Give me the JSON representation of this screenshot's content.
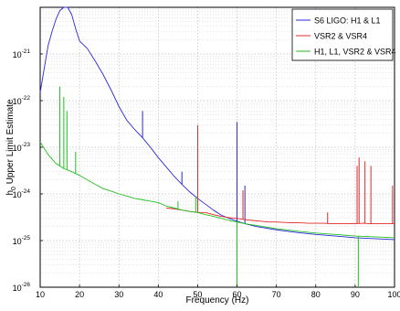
{
  "chart_data": {
    "type": "line",
    "xlabel": "Frequency (Hz)",
    "ylabel": "h_0 Upper Limit Estimate",
    "ylabel_main": "h",
    "ylabel_sub": "0",
    "ylabel_rest": " Upper Limit Estimate",
    "x_scale": "linear",
    "y_scale": "log",
    "xlim": [
      10,
      100
    ],
    "ylim": [
      1e-26,
      1e-20
    ],
    "x_ticks": [
      10,
      20,
      30,
      40,
      50,
      60,
      70,
      80,
      90,
      100
    ],
    "y_ticks": [
      {
        "value": 1e-21,
        "base": "10",
        "exp": "-21"
      },
      {
        "value": 1e-22,
        "base": "10",
        "exp": "-22"
      },
      {
        "value": 1e-23,
        "base": "10",
        "exp": "-23"
      },
      {
        "value": 1e-24,
        "base": "10",
        "exp": "-24"
      },
      {
        "value": 1e-25,
        "base": "10",
        "exp": "-25"
      },
      {
        "value": 1e-26,
        "base": "10",
        "exp": "-26"
      }
    ],
    "grid": true,
    "legend_position": "top-right",
    "series": [
      {
        "name": "S6 LIGO: H1 & L1",
        "color": "#2828d8",
        "x": [
          10,
          12,
          13,
          14,
          15,
          16,
          17,
          18,
          19,
          20,
          22,
          24,
          26,
          28,
          30,
          32,
          34,
          36,
          38,
          40,
          42,
          44,
          46,
          48,
          50,
          52,
          54,
          56,
          58,
          60,
          62,
          65,
          70,
          75,
          80,
          85,
          90,
          95,
          100
        ],
        "y": [
          1.5e-22,
          1.5e-21,
          3e-21,
          5.5e-21,
          8.5e-21,
          1e-20,
          1e-20,
          7e-21,
          3.5e-21,
          1.9e-21,
          1.3e-21,
          7e-22,
          3.6e-22,
          1.7e-22,
          7.5e-23,
          3.8e-23,
          2.4e-23,
          1.6e-23,
          1e-23,
          6e-24,
          3.8e-24,
          2.4e-24,
          1.6e-24,
          1.1e-24,
          8e-25,
          6e-25,
          4.5e-25,
          3.5e-25,
          3e-25,
          2.6e-25,
          2.3e-25,
          2e-25,
          1.7e-25,
          1.5e-25,
          1.35e-25,
          1.25e-25,
          1.15e-25,
          1.1e-25,
          1.05e-25
        ],
        "spikes": [
          {
            "x": 36,
            "y": 6e-23
          },
          {
            "x": 46,
            "y": 3e-24
          },
          {
            "x": 60,
            "y": 3.5e-23
          },
          {
            "x": 62,
            "y": 1.5e-24
          }
        ]
      },
      {
        "name": "VSR2 & VSR4",
        "color": "#e02828",
        "x": [
          42,
          44,
          46,
          48,
          50,
          52,
          54,
          56,
          58,
          60,
          62,
          64,
          66,
          68,
          70,
          72,
          74,
          76,
          78,
          80,
          82,
          84,
          86,
          88,
          90,
          92,
          94,
          96,
          98,
          100
        ],
        "y": [
          5e-25,
          4.8e-25,
          4.5e-25,
          4.2e-25,
          4e-25,
          4e-25,
          3.6e-25,
          3.3e-25,
          3.1e-25,
          3e-25,
          2.8e-25,
          2.7e-25,
          2.6e-25,
          2.5e-25,
          2.5e-25,
          2.45e-25,
          2.4e-25,
          2.4e-25,
          2.35e-25,
          2.35e-25,
          2.35e-25,
          2.3e-25,
          2.3e-25,
          2.3e-25,
          2.3e-25,
          2.35e-25,
          2.3e-25,
          2.3e-25,
          2.3e-25,
          2.3e-25
        ],
        "spikes": [
          {
            "x": 50,
            "y": 3e-23
          },
          {
            "x": 61.5,
            "y": 1.2e-24
          },
          {
            "x": 83,
            "y": 4e-25
          },
          {
            "x": 90.5,
            "y": 4e-24
          },
          {
            "x": 91,
            "y": 6e-24
          },
          {
            "x": 92.5,
            "y": 5e-24
          },
          {
            "x": 94,
            "y": 4e-24
          },
          {
            "x": 99.5,
            "y": 1.5e-24
          }
        ]
      },
      {
        "name": "H1, L1, VSR2 & VSR4",
        "color": "#20c020",
        "x": [
          10,
          12,
          14,
          16,
          18,
          20,
          22,
          24,
          26,
          28,
          30,
          32,
          34,
          36,
          38,
          40,
          42,
          44,
          46,
          48,
          50,
          52,
          54,
          56,
          58,
          60,
          62,
          65,
          70,
          75,
          80,
          85,
          90,
          95,
          100
        ],
        "y": [
          1.3e-23,
          7e-24,
          4.5e-24,
          3.5e-24,
          3e-24,
          2.5e-24,
          2e-24,
          1.6e-24,
          1.3e-24,
          1.15e-24,
          1e-24,
          9e-25,
          8e-25,
          7.5e-25,
          7e-25,
          6.5e-25,
          5.5e-25,
          5e-25,
          4.5e-25,
          4.2e-25,
          4e-25,
          3.6e-25,
          3.3e-25,
          3e-25,
          2.7e-25,
          2.5e-25,
          2.3e-25,
          2.1e-25,
          1.8e-25,
          1.6e-25,
          1.45e-25,
          1.35e-25,
          1.25e-25,
          1.2e-25,
          1.15e-25
        ],
        "spikes": [
          {
            "x": 15,
            "y": 2e-22
          },
          {
            "x": 16,
            "y": 1.2e-22
          },
          {
            "x": 16.8,
            "y": 6e-23
          },
          {
            "x": 19,
            "y": 8e-24
          },
          {
            "x": 45,
            "y": 7e-25
          },
          {
            "x": 49.5,
            "y": 9e-25
          },
          {
            "x": 60,
            "y": 1e-26
          },
          {
            "x": 90.8,
            "y": 1e-26
          }
        ]
      }
    ]
  }
}
